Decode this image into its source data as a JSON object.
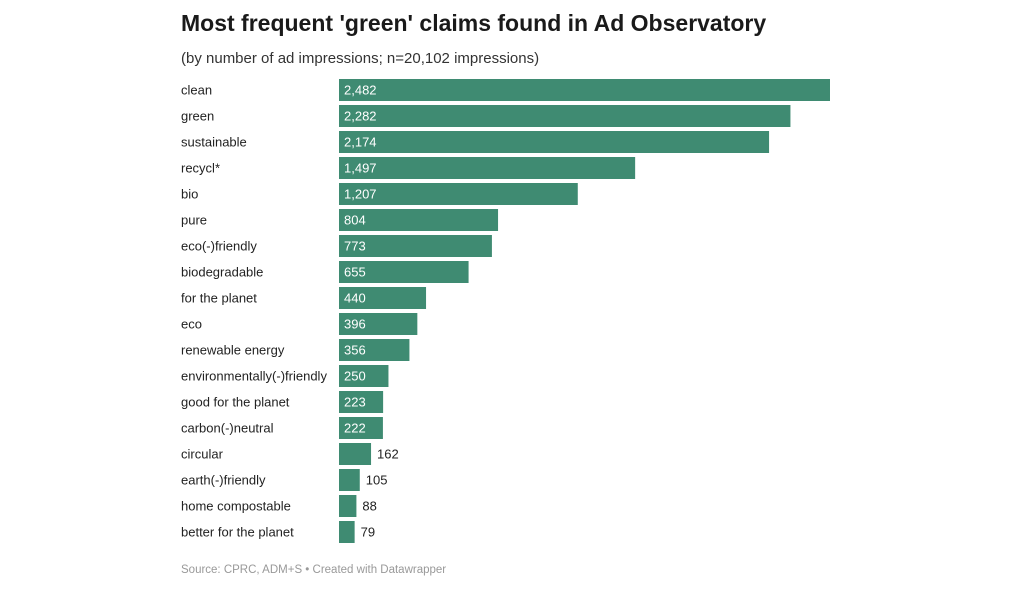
{
  "chart_data": {
    "type": "bar",
    "orientation": "horizontal",
    "title": "Most frequent 'green' claims found in Ad Observatory",
    "subtitle": "(by number of ad impressions; n=20,102 impressions)",
    "categories": [
      "clean",
      "green",
      "sustainable",
      "recycl*",
      "bio",
      "pure",
      "eco(-)friendly",
      "biodegradable",
      "for the planet",
      "eco",
      "renewable energy",
      "environmentally(-)friendly",
      "good for the planet",
      "carbon(-)neutral",
      "circular",
      "earth(-)friendly",
      "home compostable",
      "better for the planet"
    ],
    "values": [
      2482,
      2282,
      2174,
      1497,
      1207,
      804,
      773,
      655,
      440,
      396,
      356,
      250,
      223,
      222,
      162,
      105,
      88,
      79
    ],
    "value_labels": [
      "2,482",
      "2,282",
      "2,174",
      "1,497",
      "1,207",
      "804",
      "773",
      "655",
      "440",
      "396",
      "356",
      "250",
      "223",
      "222",
      "162",
      "105",
      "88",
      "79"
    ],
    "bar_color": "#3f8b72",
    "xlim": [
      0,
      2482
    ],
    "grid": false,
    "legend": "none",
    "source": "Source: CPRC, ADM+S • Created with Datawrapper"
  }
}
